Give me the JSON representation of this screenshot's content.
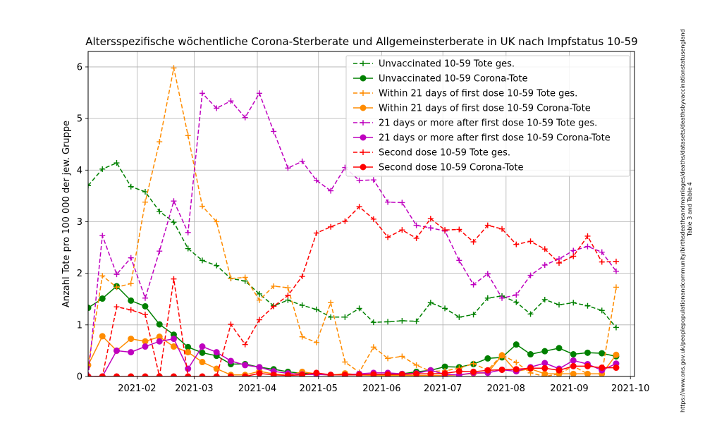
{
  "chart_data": {
    "type": "line",
    "title": "Altersspezifische wöchentliche Corona-Sterberate und Allgemeinsterberate in UK nach Impfstatus 10-59",
    "xlabel": "",
    "ylabel": "Anzahl Tote pro 100 000 der jew. Gruppe",
    "source": "https://www.ons.gov.uk/peoplepopulationandcommunity/birthsdeathsandmarriages/deaths/datasets/deathsbyvaccinationstatusengland",
    "source_note": "Table 3 and Table 4",
    "xlim": [
      "2021-01-08",
      "2021-10-03"
    ],
    "ylim": [
      0,
      6.3
    ],
    "yticks": [
      0,
      1,
      2,
      3,
      4,
      5,
      6
    ],
    "xticks": [
      {
        "date": "2021-02-01",
        "label": "2021-02"
      },
      {
        "date": "2021-03-01",
        "label": "2021-03"
      },
      {
        "date": "2021-04-01",
        "label": "2021-04"
      },
      {
        "date": "2021-05-01",
        "label": "2021-05"
      },
      {
        "date": "2021-06-01",
        "label": "2021-06"
      },
      {
        "date": "2021-07-01",
        "label": "2021-07"
      },
      {
        "date": "2021-08-01",
        "label": "2021-08"
      },
      {
        "date": "2021-09-01",
        "label": "2021-09"
      },
      {
        "date": "2021-10-01",
        "label": "2021-10"
      }
    ],
    "grid": true,
    "legend_position": "top-right",
    "x": [
      "2021-01-08",
      "2021-01-15",
      "2021-01-22",
      "2021-01-29",
      "2021-02-05",
      "2021-02-12",
      "2021-02-19",
      "2021-02-26",
      "2021-03-05",
      "2021-03-12",
      "2021-03-19",
      "2021-03-26",
      "2021-04-02",
      "2021-04-09",
      "2021-04-16",
      "2021-04-23",
      "2021-04-30",
      "2021-05-07",
      "2021-05-14",
      "2021-05-21",
      "2021-05-28",
      "2021-06-04",
      "2021-06-11",
      "2021-06-18",
      "2021-06-25",
      "2021-07-02",
      "2021-07-09",
      "2021-07-16",
      "2021-07-23",
      "2021-07-30",
      "2021-08-06",
      "2021-08-13",
      "2021-08-20",
      "2021-08-27",
      "2021-09-03",
      "2021-09-10",
      "2021-09-17",
      "2021-09-24"
    ],
    "series": [
      {
        "name": "Unvaccinated 10-59 Tote ges.",
        "color": "#008000",
        "linestyle": "dashed",
        "marker": "plus",
        "values": [
          3.7,
          4.02,
          4.14,
          3.68,
          3.58,
          3.2,
          2.99,
          2.48,
          2.25,
          2.15,
          1.9,
          1.85,
          1.6,
          1.37,
          1.48,
          1.38,
          1.3,
          1.15,
          1.15,
          1.32,
          1.05,
          1.06,
          1.08,
          1.07,
          1.43,
          1.32,
          1.15,
          1.2,
          1.52,
          1.56,
          1.44,
          1.21,
          1.49,
          1.39,
          1.43,
          1.37,
          1.28,
          0.95
        ]
      },
      {
        "name": "Unvaccinated 10-59 Corona-Tote",
        "color": "#008000",
        "linestyle": "solid",
        "marker": "circle",
        "values": [
          1.33,
          1.51,
          1.75,
          1.47,
          1.36,
          1.01,
          0.81,
          0.57,
          0.46,
          0.4,
          0.24,
          0.24,
          0.18,
          0.14,
          0.09,
          0.06,
          0.05,
          0.03,
          0.04,
          0.03,
          0.03,
          0.04,
          0.05,
          0.09,
          0.12,
          0.19,
          0.18,
          0.24,
          0.35,
          0.37,
          0.62,
          0.43,
          0.49,
          0.55,
          0.43,
          0.46,
          0.45,
          0.39
        ]
      },
      {
        "name": "Within 21 days of first dose 10-59 Tote ges.",
        "color": "#ff8c00",
        "linestyle": "dashed",
        "marker": "plus",
        "values": [
          0.21,
          1.95,
          1.73,
          1.8,
          3.38,
          4.55,
          5.98,
          4.67,
          3.3,
          3.0,
          1.9,
          1.92,
          1.48,
          1.75,
          1.72,
          0.77,
          0.66,
          1.43,
          0.28,
          0.08,
          0.57,
          0.35,
          0.39,
          0.22,
          0.1,
          0.11,
          0.16,
          0.25,
          0.12,
          0.42,
          0.27,
          0.07,
          0.0,
          0.05,
          0.2,
          0.05,
          0.05,
          1.73
        ]
      },
      {
        "name": "Within 21 days of first dose 10-59 Corona-Tote",
        "color": "#ff8c00",
        "linestyle": "solid",
        "marker": "circle",
        "values": [
          0.22,
          0.78,
          0.5,
          0.73,
          0.68,
          0.77,
          0.58,
          0.47,
          0.28,
          0.15,
          0.03,
          0.03,
          0.1,
          0.05,
          0.02,
          0.09,
          0.05,
          0.02,
          0.06,
          0.03,
          0.02,
          0.02,
          0.02,
          0.02,
          0.02,
          0.02,
          0.03,
          0.06,
          0.07,
          0.41,
          0.1,
          0.15,
          0.05,
          0.05,
          0.05,
          0.05,
          0.05,
          0.42
        ]
      },
      {
        "name": "21 days or more after first dose 10-59 Tote ges.",
        "color": "#bf00bf",
        "linestyle": "dashed",
        "marker": "plus",
        "values": [
          0.0,
          2.73,
          1.98,
          2.3,
          1.52,
          2.43,
          3.4,
          2.79,
          5.49,
          5.2,
          5.34,
          5.02,
          5.49,
          4.75,
          4.04,
          4.17,
          3.8,
          3.6,
          4.05,
          3.8,
          3.81,
          3.38,
          3.37,
          2.93,
          2.88,
          2.82,
          2.25,
          1.78,
          1.99,
          1.52,
          1.58,
          1.96,
          2.16,
          2.28,
          2.44,
          2.52,
          2.41,
          2.04
        ]
      },
      {
        "name": "21 days or more after first dose 10-59 Corona-Tote",
        "color": "#bf00bf",
        "linestyle": "solid",
        "marker": "circle",
        "values": [
          0.0,
          0.0,
          0.5,
          0.47,
          0.58,
          0.68,
          0.73,
          0.15,
          0.58,
          0.47,
          0.3,
          0.22,
          0.18,
          0.1,
          0.06,
          0.04,
          0.04,
          0.03,
          0.03,
          0.05,
          0.07,
          0.07,
          0.05,
          0.06,
          0.12,
          0.04,
          0.03,
          0.07,
          0.07,
          0.13,
          0.1,
          0.18,
          0.26,
          0.15,
          0.31,
          0.24,
          0.12,
          0.25
        ]
      },
      {
        "name": "Second dose 10-59 Tote ges.",
        "color": "#ff0000",
        "linestyle": "dashed",
        "marker": "plus",
        "values": [
          0.0,
          0.0,
          1.35,
          1.29,
          1.2,
          0.0,
          1.89,
          0.0,
          0.0,
          0.0,
          1.01,
          0.62,
          1.1,
          1.36,
          1.57,
          1.94,
          2.78,
          2.9,
          3.01,
          3.29,
          3.05,
          2.7,
          2.84,
          2.68,
          3.06,
          2.84,
          2.85,
          2.61,
          2.93,
          2.86,
          2.56,
          2.62,
          2.47,
          2.2,
          2.33,
          2.72,
          2.22,
          2.23
        ]
      },
      {
        "name": "Second dose 10-59 Corona-Tote",
        "color": "#ff0000",
        "linestyle": "solid",
        "marker": "circle",
        "values": [
          0.0,
          0.0,
          0.0,
          0.0,
          0.0,
          0.0,
          0.0,
          0.0,
          0.0,
          0.0,
          0.0,
          0.0,
          0.06,
          0.03,
          0.02,
          0.03,
          0.07,
          0.03,
          0.03,
          0.03,
          0.04,
          0.04,
          0.04,
          0.05,
          0.05,
          0.06,
          0.1,
          0.09,
          0.12,
          0.13,
          0.14,
          0.16,
          0.16,
          0.12,
          0.2,
          0.2,
          0.17,
          0.17
        ]
      }
    ]
  }
}
